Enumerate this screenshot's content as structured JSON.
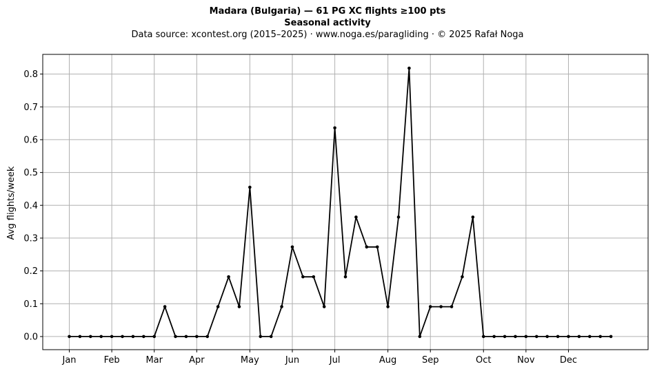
{
  "header": {
    "title": "Madara (Bulgaria)  —  61 PG XC flights ≥100 pts",
    "subtitle": "Seasonal activity",
    "source": "Data source: xcontest.org (2015–2025)  ·  www.noga.es/paragliding  ·  © 2025 Rafał Noga"
  },
  "chart_data": {
    "type": "line",
    "title": "Madara (Bulgaria)  —  61 PG XC flights ≥100 pts",
    "subtitle": "Seasonal activity",
    "xlabel": "",
    "ylabel": "Avg flights/week",
    "x_tick_labels": [
      {
        "label": "Jan",
        "week": 1
      },
      {
        "label": "Feb",
        "week": 5
      },
      {
        "label": "Mar",
        "week": 9
      },
      {
        "label": "Apr",
        "week": 13
      },
      {
        "label": "May",
        "week": 18
      },
      {
        "label": "Jun",
        "week": 22
      },
      {
        "label": "Jul",
        "week": 26
      },
      {
        "label": "Aug",
        "week": 31
      },
      {
        "label": "Sep",
        "week": 35
      },
      {
        "label": "Oct",
        "week": 40
      },
      {
        "label": "Nov",
        "week": 44
      },
      {
        "label": "Dec",
        "week": 48
      }
    ],
    "y_ticks": [
      0.0,
      0.1,
      0.2,
      0.3,
      0.4,
      0.5,
      0.6,
      0.7,
      0.8
    ],
    "xlim": [
      -1.5,
      55.5
    ],
    "ylim": [
      -0.04,
      0.86
    ],
    "grid": true,
    "color": "#000000",
    "series": [
      {
        "x": [
          1,
          2,
          3,
          4,
          5,
          6,
          7,
          8,
          9,
          10,
          11,
          12,
          13,
          14,
          15,
          16,
          17,
          18,
          19,
          20,
          21,
          22,
          23,
          24,
          25,
          26,
          27,
          28,
          29,
          30,
          31,
          32,
          33,
          34,
          35,
          36,
          37,
          38,
          39,
          40,
          41,
          42,
          43,
          44,
          45,
          46,
          47,
          48,
          49,
          50,
          51,
          52
        ],
        "values": [
          0,
          0,
          0,
          0,
          0,
          0,
          0,
          0,
          0,
          0.091,
          0,
          0,
          0,
          0,
          0.091,
          0.182,
          0.091,
          0.455,
          0,
          0,
          0.091,
          0.273,
          0.182,
          0.182,
          0.091,
          0.636,
          0.182,
          0.364,
          0.273,
          0.273,
          0.091,
          0.364,
          0.818,
          0,
          0.091,
          0.091,
          0.091,
          0.182,
          0.364,
          0,
          0,
          0,
          0,
          0,
          0,
          0,
          0,
          0,
          0,
          0,
          0,
          0
        ]
      }
    ]
  }
}
